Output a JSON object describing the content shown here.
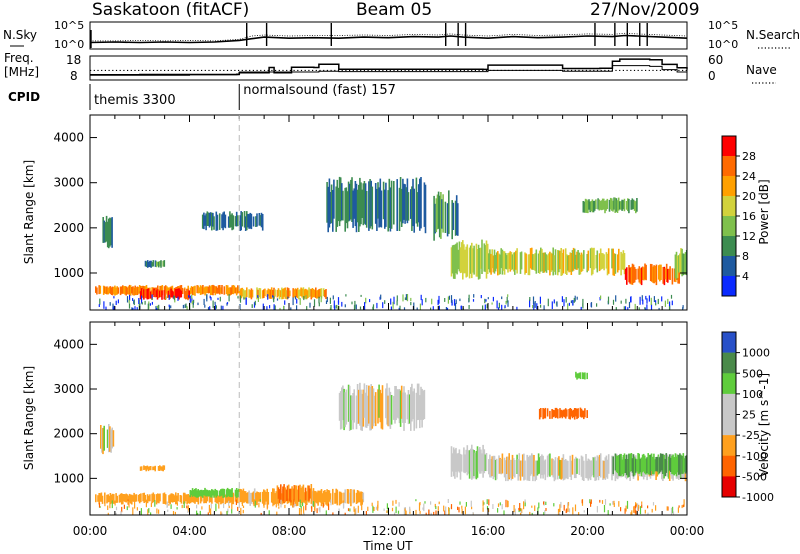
{
  "header": {
    "station": "Saskatoon (fitACF)",
    "beam": "Beam 05",
    "date": "27/Nov/2009"
  },
  "strip_labels": {
    "nsky": "N.Sky",
    "nsky_ticks": [
      "10^5",
      "10^0"
    ],
    "nsearch": "N.Search",
    "nsearch_ticks": [
      "10^5",
      "10^0"
    ],
    "freq_top": "Freq.",
    "freq_bottom": "[MHz]",
    "freq_ticks": [
      "18",
      "8"
    ],
    "nave": "Nave",
    "nave_ticks": [
      "60",
      "0"
    ],
    "cpid": "CPID"
  },
  "cpid_segments": [
    {
      "start_hour": 0.0,
      "label": "themis 3300"
    },
    {
      "start_hour": 6.0,
      "label": "normalsound (fast) 157"
    }
  ],
  "chart_data": [
    {
      "type": "line",
      "name": "nsky_nsearch_strip",
      "x": [
        0,
        1,
        2,
        3,
        4,
        5,
        6,
        6.5,
        7,
        8,
        9,
        10,
        11,
        12,
        13,
        14,
        14.5,
        15,
        16,
        17,
        18,
        19,
        20,
        21,
        21.5,
        22,
        23,
        24
      ],
      "series": [
        {
          "name": "N.Sky",
          "values": [
            1.2,
            1.3,
            1.2,
            1.3,
            1.2,
            1.3,
            1.6,
            1.9,
            2.2,
            2.0,
            2.1,
            2.0,
            2.2,
            2.1,
            2.3,
            2.2,
            2.4,
            2.2,
            2.0,
            2.3,
            2.1,
            2.2,
            2.4,
            2.3,
            2.5,
            2.4,
            2.2,
            2.0
          ]
        },
        {
          "name": "N.Search",
          "values": [
            1.5,
            1.5,
            1.6,
            1.5,
            1.6,
            1.5,
            1.8,
            2.4,
            2.6,
            2.4,
            2.5,
            2.5,
            2.6,
            2.5,
            2.7,
            2.6,
            2.8,
            2.6,
            2.4,
            2.7,
            2.5,
            2.6,
            2.8,
            2.7,
            2.9,
            2.8,
            2.6,
            2.4
          ]
        }
      ],
      "spikes_hour": [
        6.3,
        7.1,
        9.7,
        14.3,
        14.8,
        15.1,
        20.3,
        21.1,
        21.6,
        22.1,
        22.4
      ],
      "ylabel_left": "N.Sky",
      "ylabel_right": "N.Search",
      "y_scale": "log",
      "ylim": [
        1,
        100000
      ]
    },
    {
      "type": "line",
      "name": "freq_nave_strip",
      "x": [
        0,
        2,
        4,
        5.9,
        6.0,
        7.2,
        7.4,
        8.0,
        8.1,
        9.0,
        9.2,
        10.0,
        13.0,
        15.8,
        16.0,
        19.0,
        20.5,
        21.0,
        21.3,
        22.5,
        23.0,
        23.6,
        24.0
      ],
      "series": [
        {
          "name": "Freq",
          "values": [
            10.2,
            10.3,
            10.3,
            10.4,
            11.0,
            13.2,
            11.0,
            11.0,
            13.3,
            13.2,
            14.6,
            12.5,
            12.5,
            12.4,
            14.2,
            12.8,
            12.9,
            15.8,
            16.7,
            16.4,
            14.5,
            13.1,
            12.4
          ]
        },
        {
          "name": "Nave",
          "values": [
            12,
            12,
            13,
            13,
            20,
            20,
            20,
            20,
            20,
            20,
            22,
            21,
            21,
            21,
            24,
            22,
            22,
            36,
            36,
            34,
            26,
            20,
            18
          ]
        }
      ],
      "freq_reference_mhz": 12.0,
      "ylim_freq": [
        8,
        18
      ],
      "ylim_nave": [
        0,
        60
      ]
    },
    {
      "type": "heatmap",
      "name": "power",
      "colorbar_label": "Power [dB]",
      "colorbar_ticks": [
        "28",
        "24",
        "20",
        "16",
        "12",
        "8",
        "4"
      ],
      "colorbar_colors": [
        "#ff0000",
        "#ff6a00",
        "#ffa000",
        "#d2d23c",
        "#7fc04c",
        "#3c8c50",
        "#1e5aa0",
        "#0a2aff"
      ],
      "ylabel": "Slant Range [km]",
      "yticks": [
        "1000",
        "2000",
        "3000",
        "4000"
      ],
      "ylim": [
        180,
        4500
      ],
      "xlim": [
        0,
        24
      ],
      "features": [
        {
          "hour": [
            0.5,
            0.9
          ],
          "range": [
            1480,
            2350
          ],
          "db": 10
        },
        {
          "hour": [
            0.2,
            6.0
          ],
          "range": [
            480,
            750
          ],
          "db": 26
        },
        {
          "hour": [
            2.0,
            4.0
          ],
          "range": [
            380,
            680
          ],
          "db": 30
        },
        {
          "hour": [
            6.0,
            9.5
          ],
          "range": [
            400,
            700
          ],
          "db": 24
        },
        {
          "hour": [
            2.2,
            3.0
          ],
          "range": [
            1100,
            1300
          ],
          "db": 12
        },
        {
          "hour": [
            4.5,
            7.0
          ],
          "range": [
            1900,
            2400
          ],
          "db": 10
        },
        {
          "hour": [
            9.5,
            13.5
          ],
          "range": [
            1800,
            3200
          ],
          "db": 10
        },
        {
          "hour": [
            13.8,
            14.8
          ],
          "range": [
            1600,
            2900
          ],
          "db": 12
        },
        {
          "hour": [
            14.5,
            16.0
          ],
          "range": [
            800,
            1800
          ],
          "db": 18
        },
        {
          "hour": [
            16.0,
            21.5
          ],
          "range": [
            900,
            1600
          ],
          "db": 20
        },
        {
          "hour": [
            19.8,
            22.0
          ],
          "range": [
            2300,
            2700
          ],
          "db": 14
        },
        {
          "hour": [
            21.5,
            23.7
          ],
          "range": [
            700,
            1250
          ],
          "db": 28
        },
        {
          "hour": [
            23.5,
            24.0
          ],
          "range": [
            800,
            1600
          ],
          "db": 16
        }
      ]
    },
    {
      "type": "heatmap",
      "name": "velocity",
      "colorbar_label": "Velocity [m s^-1]",
      "colorbar_ticks": [
        "1000",
        "500",
        "100",
        "25",
        "-25",
        "-100",
        "-500",
        "-1000"
      ],
      "colorbar_colors": [
        "#2850c8",
        "#4a8a4a",
        "#5fcc3c",
        "#c8c8c8",
        "#c8c8c8",
        "#ffa01e",
        "#ff6400",
        "#e60000"
      ],
      "ylabel": "Slant Range [km]",
      "yticks": [
        "1000",
        "2000",
        "3000",
        "4000"
      ],
      "ylim": [
        180,
        4500
      ],
      "xlim": [
        0,
        24
      ],
      "xticks": [
        "00:00",
        "04:00",
        "08:00",
        "12:00",
        "16:00",
        "20:00",
        "00:00"
      ],
      "xlabel": "Time UT",
      "features": [
        {
          "hour": [
            0.4,
            1.0
          ],
          "range": [
            1500,
            2300
          ],
          "vel": 0
        },
        {
          "hour": [
            0.2,
            6.0
          ],
          "range": [
            400,
            700
          ],
          "vel": -150
        },
        {
          "hour": [
            2.0,
            3.0
          ],
          "range": [
            1150,
            1300
          ],
          "vel": -200
        },
        {
          "hour": [
            4.0,
            6.0
          ],
          "range": [
            550,
            800
          ],
          "vel": 150
        },
        {
          "hour": [
            6.0,
            11.0
          ],
          "range": [
            350,
            800
          ],
          "vel": -120
        },
        {
          "hour": [
            7.5,
            9.0
          ],
          "range": [
            400,
            900
          ],
          "vel": -300
        },
        {
          "hour": [
            10.0,
            13.5
          ],
          "range": [
            2000,
            3200
          ],
          "vel": 0
        },
        {
          "hour": [
            14.5,
            16.0
          ],
          "range": [
            900,
            1800
          ],
          "vel": 0
        },
        {
          "hour": [
            16.0,
            24.0
          ],
          "range": [
            900,
            1600
          ],
          "vel": 0
        },
        {
          "hour": [
            18.0,
            20.0
          ],
          "range": [
            2300,
            2600
          ],
          "vel": -400
        },
        {
          "hour": [
            19.5,
            20.0
          ],
          "range": [
            3200,
            3400
          ],
          "vel": 200
        },
        {
          "hour": [
            21.0,
            24.0
          ],
          "range": [
            1000,
            1600
          ],
          "vel": 300
        }
      ]
    }
  ]
}
